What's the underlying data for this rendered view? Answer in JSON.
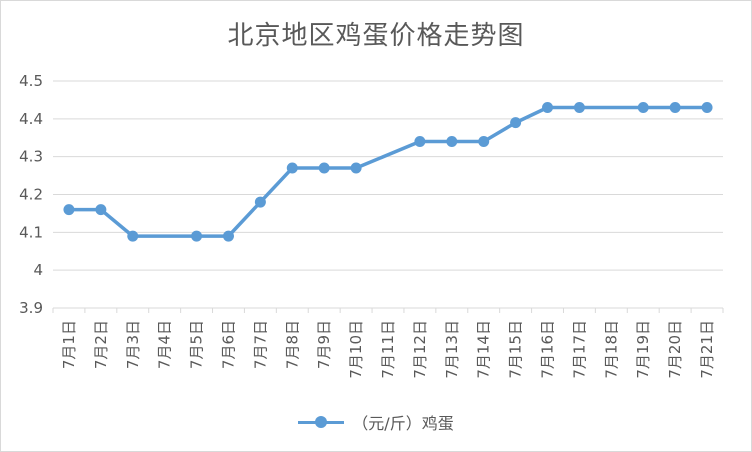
{
  "chart_data": {
    "type": "line",
    "title": "北京地区鸡蛋价格走势图",
    "categories": [
      "7月1日",
      "7月2日",
      "7月3日",
      "7月4日",
      "7月5日",
      "7月6日",
      "7月7日",
      "7月8日",
      "7月9日",
      "7月10日",
      "7月11日",
      "7月12日",
      "7月13日",
      "7月14日",
      "7月15日",
      "7月16日",
      "7月17日",
      "7月18日",
      "7月19日",
      "7月20日",
      "7月21日"
    ],
    "series": [
      {
        "name": "（元/斤）鸡蛋",
        "points": [
          {
            "x": "7月1日",
            "y": 4.16
          },
          {
            "x": "7月2日",
            "y": 4.16
          },
          {
            "x": "7月3日",
            "y": 4.09
          },
          {
            "x": "7月5日",
            "y": 4.09
          },
          {
            "x": "7月6日",
            "y": 4.09
          },
          {
            "x": "7月7日",
            "y": 4.18
          },
          {
            "x": "7月8日",
            "y": 4.27
          },
          {
            "x": "7月9日",
            "y": 4.27
          },
          {
            "x": "7月10日",
            "y": 4.27
          },
          {
            "x": "7月12日",
            "y": 4.34
          },
          {
            "x": "7月13日",
            "y": 4.34
          },
          {
            "x": "7月14日",
            "y": 4.34
          },
          {
            "x": "7月15日",
            "y": 4.39
          },
          {
            "x": "7月16日",
            "y": 4.43
          },
          {
            "x": "7月17日",
            "y": 4.43
          },
          {
            "x": "7月19日",
            "y": 4.43
          },
          {
            "x": "7月20日",
            "y": 4.43
          },
          {
            "x": "7月21日",
            "y": 4.43
          }
        ]
      }
    ],
    "yticks": [
      "3.9",
      "4",
      "4.1",
      "4.2",
      "4.3",
      "4.4",
      "4.5"
    ],
    "ylim": [
      3.9,
      4.5
    ],
    "grid": true,
    "legend": "bottom",
    "colors": {
      "series": "#5b9bd5",
      "grid": "#d9d9d9",
      "text": "#595959"
    }
  }
}
